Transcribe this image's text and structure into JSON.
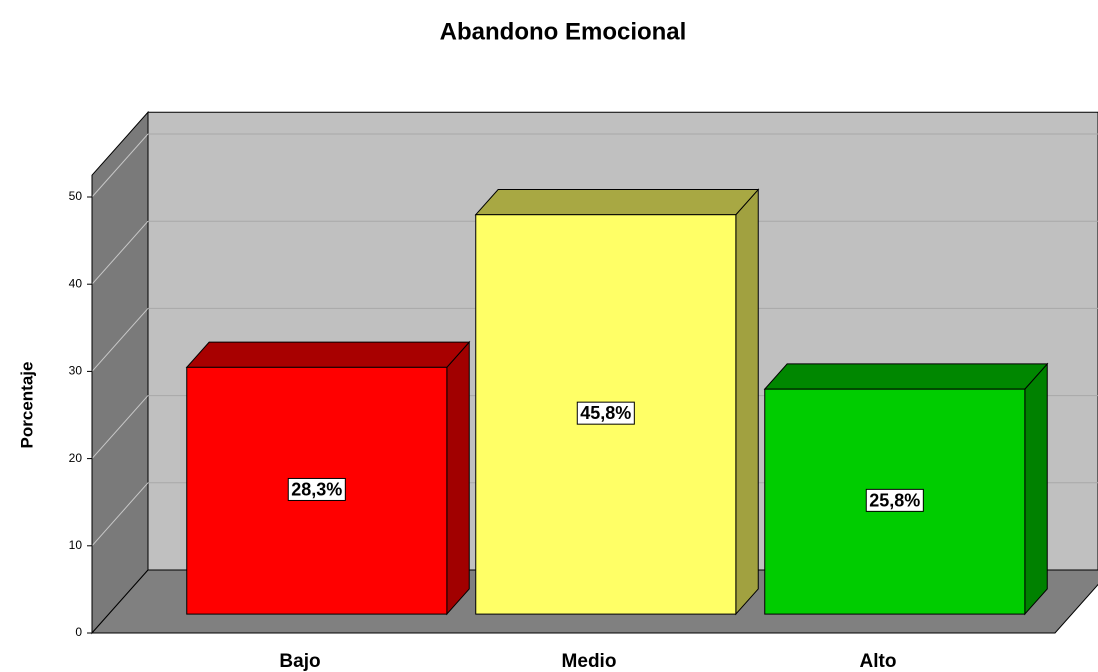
{
  "chart_data": {
    "type": "bar3d",
    "title": "Abandono Emocional",
    "y_label": "Porcentaje",
    "categories": [
      "Bajo",
      "Medio",
      "Alto"
    ],
    "values": [
      28.3,
      45.8,
      25.8
    ],
    "value_labels": [
      "28,3%",
      "45,8%",
      "25,8%"
    ],
    "colors": [
      "#ff0000",
      "#ffff66",
      "#00cc00"
    ],
    "ylim": [
      0,
      52.5
    ],
    "yticks": [
      0,
      10,
      20,
      30,
      40,
      50
    ],
    "grid": true
  }
}
